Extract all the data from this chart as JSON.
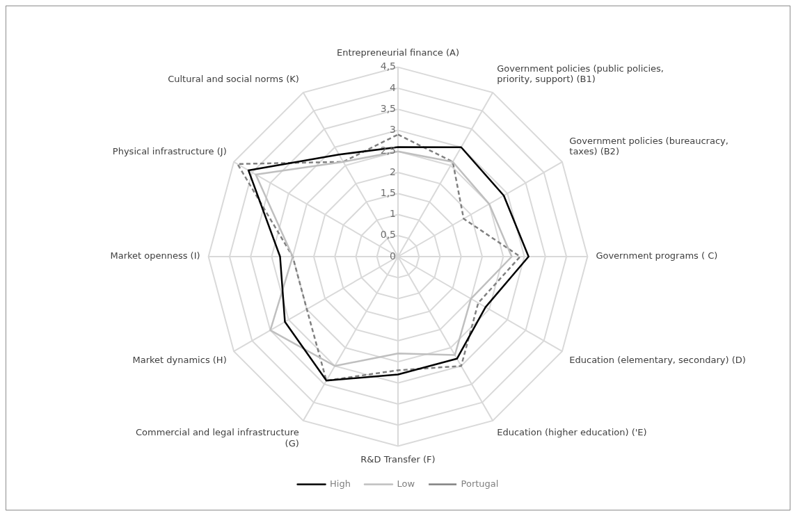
{
  "chart_data": {
    "type": "radar",
    "categories": [
      "Entrepreneurial finance (A)",
      "Government policies (public policies, priority, support) (B1)",
      "Government policies (bureaucracy, taxes) (B2)",
      "Government programs ( C)",
      "Education (elementary, secondary) (D)",
      "Education (higher education) ('E)",
      "R&D Transfer (F)",
      "Commercial and legal infrastructure (G)",
      "Market dynamics (H)",
      "Market openness (I)",
      "Physical infrastructure (J)",
      "Cultural and social norms (K)"
    ],
    "series": [
      {
        "name": "High",
        "color": "#000000",
        "line_style": "solid",
        "values": [
          2.6,
          3.0,
          2.9,
          3.1,
          2.4,
          2.8,
          2.8,
          3.4,
          3.1,
          2.8,
          4.1,
          2.8
        ]
      },
      {
        "name": "Low",
        "color": "#bfbfbf",
        "line_style": "solid",
        "values": [
          2.5,
          2.6,
          2.5,
          2.7,
          2.0,
          2.7,
          2.3,
          3.0,
          3.5,
          2.5,
          3.9,
          2.6
        ]
      },
      {
        "name": "Portugal",
        "color": "#808080",
        "line_style": "dashed",
        "values": [
          2.9,
          2.6,
          1.8,
          2.9,
          2.2,
          3.0,
          2.7,
          3.4,
          2.5,
          2.5,
          4.4,
          2.6
        ]
      }
    ],
    "ylim": [
      0,
      4.5
    ],
    "yticks": [
      0,
      {
        "value": 0.5,
        "label": "0,5"
      },
      1,
      {
        "value": 1.5,
        "label": "1,5"
      },
      2,
      {
        "value": 2.5,
        "label": "2,5"
      },
      3,
      {
        "value": 3.5,
        "label": "3,5"
      },
      4,
      {
        "value": 4.5,
        "label": "4,5"
      }
    ],
    "grid": true,
    "legend": "bottom",
    "marker": "none"
  }
}
